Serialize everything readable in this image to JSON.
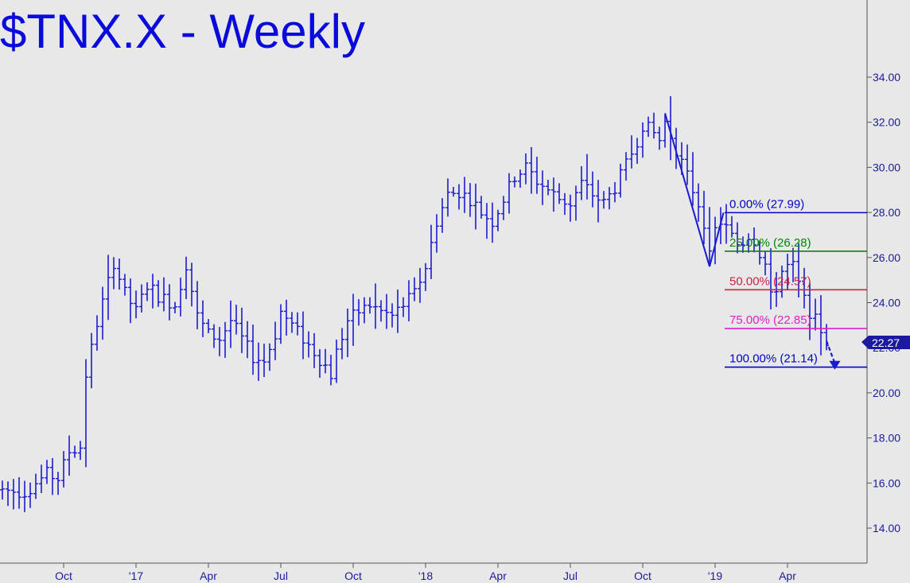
{
  "chart_data": {
    "type": "ohlc",
    "title": "$TNX.X - Weekly",
    "y_ticks": [
      "14.00",
      "16.00",
      "18.00",
      "20.00",
      "22.00",
      "24.00",
      "26.00",
      "28.00",
      "30.00",
      "32.00",
      "34.00"
    ],
    "ylim": [
      12.5,
      35.5
    ],
    "x_ticks": [
      {
        "label": "Oct",
        "week": 11
      },
      {
        "label": "'17",
        "week": 24
      },
      {
        "label": "Apr",
        "week": 37
      },
      {
        "label": "Jul",
        "week": 50
      },
      {
        "label": "Oct",
        "week": 63
      },
      {
        "label": "'18",
        "week": 76
      },
      {
        "label": "Apr",
        "week": 89
      },
      {
        "label": "Jul",
        "week": 102
      },
      {
        "label": "Oct",
        "week": 115
      },
      {
        "label": "'19",
        "week": 128
      },
      {
        "label": "Apr",
        "week": 141
      }
    ],
    "grid": false,
    "last_price": "22.27",
    "fib_levels": [
      {
        "label": "0.00% (27.99)",
        "value": 27.99,
        "color": "#0000cc"
      },
      {
        "label": "25.00% (26.28)",
        "value": 26.28,
        "color": "#008800"
      },
      {
        "label": "50.00% (24.57)",
        "value": 24.57,
        "color": "#cc2244"
      },
      {
        "label": "75.00% (22.85)",
        "value": 22.85,
        "color": "#e020c0"
      },
      {
        "label": "100.00% (21.14)",
        "value": 21.14,
        "color": "#0000cc"
      }
    ],
    "pattern_lines": [
      {
        "from": [
          119,
          32.4
        ],
        "to": [
          127,
          25.6
        ]
      },
      {
        "from": [
          127,
          25.6
        ],
        "to": [
          129.5,
          27.99
        ]
      }
    ],
    "target_arrow": {
      "from": [
        148,
        22.3
      ],
      "to": [
        149.5,
        21.1
      ]
    },
    "key_closes": [
      [
        0,
        15.7
      ],
      [
        4,
        15.6
      ],
      [
        8,
        16.4
      ],
      [
        10,
        16.2
      ],
      [
        12,
        17.4
      ],
      [
        14,
        17.6
      ],
      [
        15,
        20.8
      ],
      [
        17,
        23.1
      ],
      [
        20,
        25.8
      ],
      [
        22,
        24.4
      ],
      [
        24,
        23.6
      ],
      [
        26,
        24.8
      ],
      [
        28,
        24.3
      ],
      [
        31,
        23.9
      ],
      [
        33,
        25.7
      ],
      [
        35,
        23.4
      ],
      [
        37,
        22.6
      ],
      [
        39,
        22.4
      ],
      [
        41,
        23.2
      ],
      [
        43,
        22.4
      ],
      [
        45,
        21.6
      ],
      [
        47,
        21.4
      ],
      [
        49,
        22.6
      ],
      [
        50,
        23.6
      ],
      [
        52,
        23.0
      ],
      [
        54,
        22.4
      ],
      [
        56,
        21.8
      ],
      [
        58,
        21.2
      ],
      [
        59,
        20.8
      ],
      [
        60,
        21.8
      ],
      [
        62,
        23.2
      ],
      [
        64,
        23.6
      ],
      [
        66,
        23.9
      ],
      [
        68,
        23.6
      ],
      [
        70,
        23.4
      ],
      [
        72,
        23.9
      ],
      [
        74,
        24.4
      ],
      [
        76,
        25.6
      ],
      [
        78,
        27.6
      ],
      [
        80,
        28.8
      ],
      [
        82,
        28.9
      ],
      [
        84,
        28.6
      ],
      [
        86,
        28.0
      ],
      [
        88,
        27.6
      ],
      [
        90,
        28.6
      ],
      [
        92,
        29.6
      ],
      [
        94,
        30.0
      ],
      [
        96,
        29.4
      ],
      [
        98,
        29.0
      ],
      [
        100,
        28.6
      ],
      [
        102,
        28.4
      ],
      [
        104,
        29.3
      ],
      [
        106,
        28.8
      ],
      [
        108,
        28.4
      ],
      [
        110,
        29.1
      ],
      [
        112,
        30.1
      ],
      [
        114,
        31.2
      ],
      [
        115,
        31.9
      ],
      [
        117,
        31.5
      ],
      [
        118,
        31.2
      ],
      [
        119,
        32.0
      ],
      [
        120,
        31.4
      ],
      [
        121,
        30.8
      ],
      [
        123,
        29.6
      ],
      [
        125,
        28.4
      ],
      [
        126,
        27.6
      ],
      [
        127,
        26.0
      ],
      [
        128,
        27.2
      ],
      [
        129,
        27.6
      ],
      [
        130,
        27.3
      ],
      [
        131,
        26.9
      ],
      [
        132,
        26.6
      ],
      [
        133,
        26.7
      ],
      [
        134,
        27.0
      ],
      [
        135,
        26.8
      ],
      [
        136,
        26.2
      ],
      [
        137,
        25.7
      ],
      [
        138,
        24.2
      ],
      [
        139,
        24.7
      ],
      [
        140,
        25.4
      ],
      [
        141,
        25.6
      ],
      [
        142,
        25.6
      ],
      [
        143,
        24.8
      ],
      [
        144,
        24.1
      ],
      [
        145,
        23.6
      ],
      [
        146,
        23.2
      ],
      [
        147,
        22.8
      ],
      [
        148,
        22.27
      ]
    ]
  }
}
